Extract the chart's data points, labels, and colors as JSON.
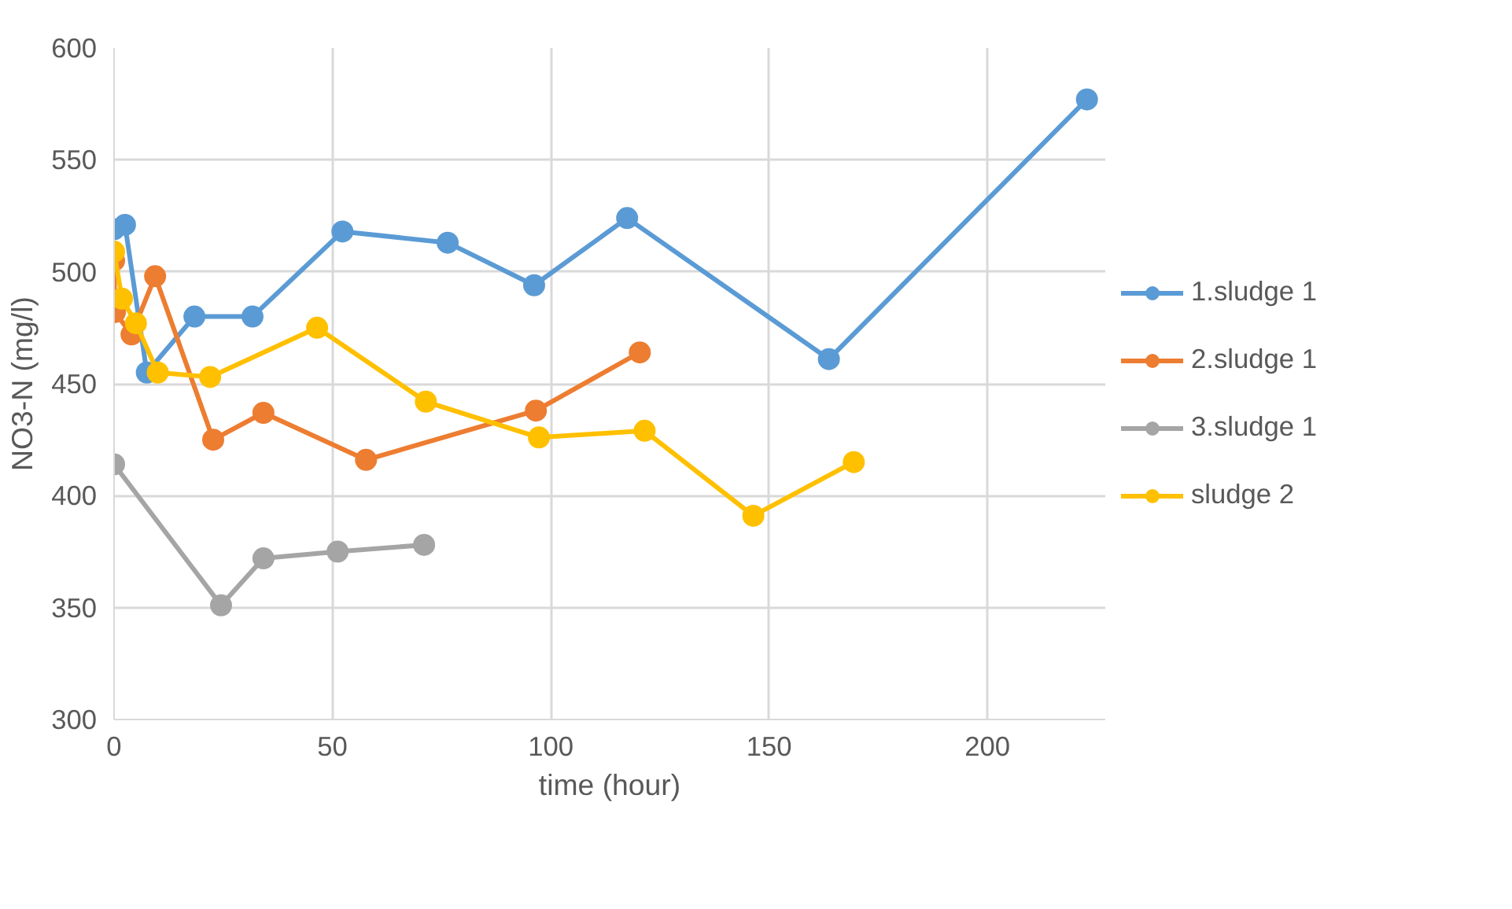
{
  "chart_data": {
    "type": "line",
    "xlabel": "time (hour)",
    "ylabel": "NO3-N (mg/l)",
    "xlim": [
      0,
      227
    ],
    "xticks": [
      0,
      50,
      100,
      150,
      200
    ],
    "ylim": [
      300,
      600
    ],
    "yticks": [
      300,
      350,
      400,
      450,
      500,
      550,
      600
    ],
    "grid": true,
    "legend": "right",
    "marker": "circle",
    "line_style": "solid",
    "series": [
      {
        "name": "1.sludge 1",
        "color": "#5b9bd5",
        "x": [
          0,
          2.5,
          7.5,
          18.4,
          31.7,
          52.3,
          76.4,
          96.2,
          117.5,
          163.7,
          222.8
        ],
        "values": [
          519,
          521,
          455,
          480,
          480,
          518,
          513,
          494,
          524,
          461,
          577
        ]
      },
      {
        "name": "2.sludge 1",
        "color": "#ed7d31",
        "x": [
          0,
          0.2,
          4,
          9.4,
          22.7,
          34.2,
          57.7,
          96.6,
          120.4
        ],
        "values": [
          505,
          482,
          472,
          498,
          425,
          437,
          416,
          438,
          464
        ]
      },
      {
        "name": "3.sludge 1",
        "color": "#a5a5a5",
        "x": [
          0,
          24.5,
          34.2,
          51.2,
          71
        ],
        "values": [
          414,
          351,
          372,
          375,
          378
        ]
      },
      {
        "name": "sludge 2",
        "color": "#ffc000",
        "x": [
          0,
          1.8,
          5,
          10,
          22,
          46.5,
          71.4,
          97.3,
          121.5,
          146.4,
          169.4
        ],
        "values": [
          509,
          488,
          477,
          455,
          453,
          475,
          442,
          426,
          429,
          391,
          415
        ]
      }
    ]
  }
}
